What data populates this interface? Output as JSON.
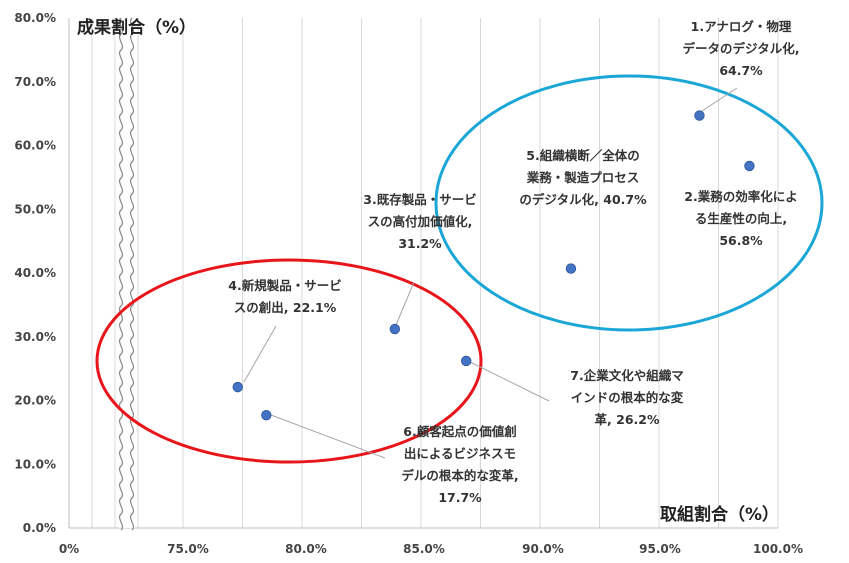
{
  "chart_data": {
    "type": "scatter",
    "xlabel": "取組割合（%）",
    "ylabel": "成果割合（%）",
    "x_ticks": [
      "0%",
      "75.0%",
      "80.0%",
      "85.0%",
      "90.0%",
      "95.0%",
      "100.0%"
    ],
    "y_ticks": [
      "0.0%",
      "10.0%",
      "20.0%",
      "30.0%",
      "40.0%",
      "50.0%",
      "60.0%",
      "70.0%",
      "80.0%"
    ],
    "xlim": [
      72,
      100
    ],
    "ylim": [
      0,
      80
    ],
    "grid": "vertical",
    "axis_break": "x",
    "point_color": "#4472c4",
    "points": [
      {
        "x": 96.7,
        "y": 64.7,
        "label": [
          "1.アナログ・物理",
          "データのデジタル化,",
          "64.7%"
        ]
      },
      {
        "x": 98.8,
        "y": 56.8,
        "label": [
          "2.業務の効率化によ",
          "る生産性の向上,",
          "56.8%"
        ]
      },
      {
        "x": 83.9,
        "y": 31.2,
        "label": [
          "3.既存製品・サービ",
          "スの高付加価値化,",
          "31.2%"
        ]
      },
      {
        "x": 77.3,
        "y": 22.1,
        "label": [
          "4.新規製品・サービ",
          "スの創出, 22.1%"
        ]
      },
      {
        "x": 91.3,
        "y": 40.7,
        "label": [
          "5.組織横断／全体の",
          "業務・製造プロセス",
          "のデジタル化, 40.7%"
        ]
      },
      {
        "x": 78.5,
        "y": 17.7,
        "label": [
          "6.顧客起点の価値創",
          "出によるビジネスモ",
          "デルの根本的な変革,",
          "17.7%"
        ]
      },
      {
        "x": 86.9,
        "y": 26.2,
        "label": [
          "7.企業文化や組織マ",
          "インドの根本的な変",
          "革, 26.2%"
        ]
      }
    ],
    "groups": [
      {
        "color": "#e8151b",
        "members": [
          3,
          4,
          6
        ]
      },
      {
        "color": "#1aa6d6",
        "members": [
          1,
          2,
          5
        ]
      }
    ]
  }
}
